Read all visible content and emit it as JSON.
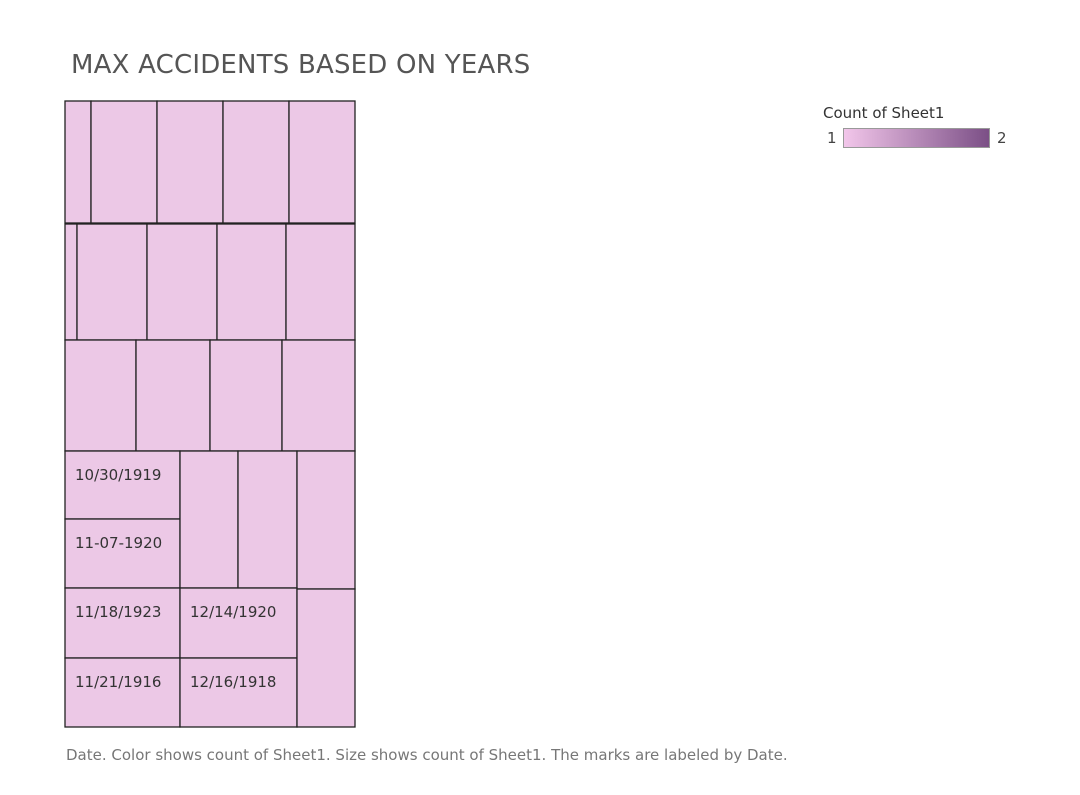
{
  "chart_data": {
    "type": "treemap",
    "title": "MAX ACCIDENTS BASED ON YEARS",
    "caption": "Date.  Color shows count of Sheet1.  Size shows count of Sheet1.  The marks are labeled by Date.",
    "legend": {
      "title": "Count of Sheet1",
      "min_label": "1",
      "max_label": "2",
      "placement": "top-right",
      "color_low": "#f2c6ea",
      "color_high": "#7b4f86"
    },
    "mark_color": "#ecc8e6",
    "border_color": "#222222",
    "labeled_marks": [
      {
        "label": "10/30/1919",
        "count": 1
      },
      {
        "label": "11-07-1920",
        "count": 1
      },
      {
        "label": "11/18/1923",
        "count": 1
      },
      {
        "label": "12/14/1920",
        "count": 1
      },
      {
        "label": "11/21/1916",
        "count": 1
      },
      {
        "label": "12/16/1918",
        "count": 1
      }
    ],
    "unlabeled_mark_count": 20
  }
}
